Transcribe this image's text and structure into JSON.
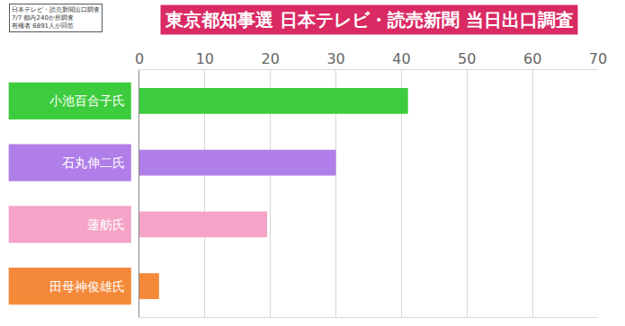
{
  "chart_data": {
    "type": "bar",
    "orientation": "horizontal",
    "title": "東京都知事選 日本テレビ・読売新聞 当日出口調査",
    "note": [
      "日本テレビ・読売新聞出口調査",
      "7/7 都内240か所調査",
      "有権者 6891人が回答"
    ],
    "categories": [
      "小池百合子氏",
      "石丸伸二氏",
      "蓮舫氏",
      "田母神俊雄氏"
    ],
    "values": [
      41,
      30,
      19.5,
      3
    ],
    "colors": [
      "#3dcc3d",
      "#b07ee8",
      "#f5a3c7",
      "#f5893a"
    ],
    "xlim": [
      0,
      70
    ],
    "xticks": [
      0,
      10,
      20,
      30,
      40,
      50,
      60,
      70
    ],
    "grid": true
  }
}
